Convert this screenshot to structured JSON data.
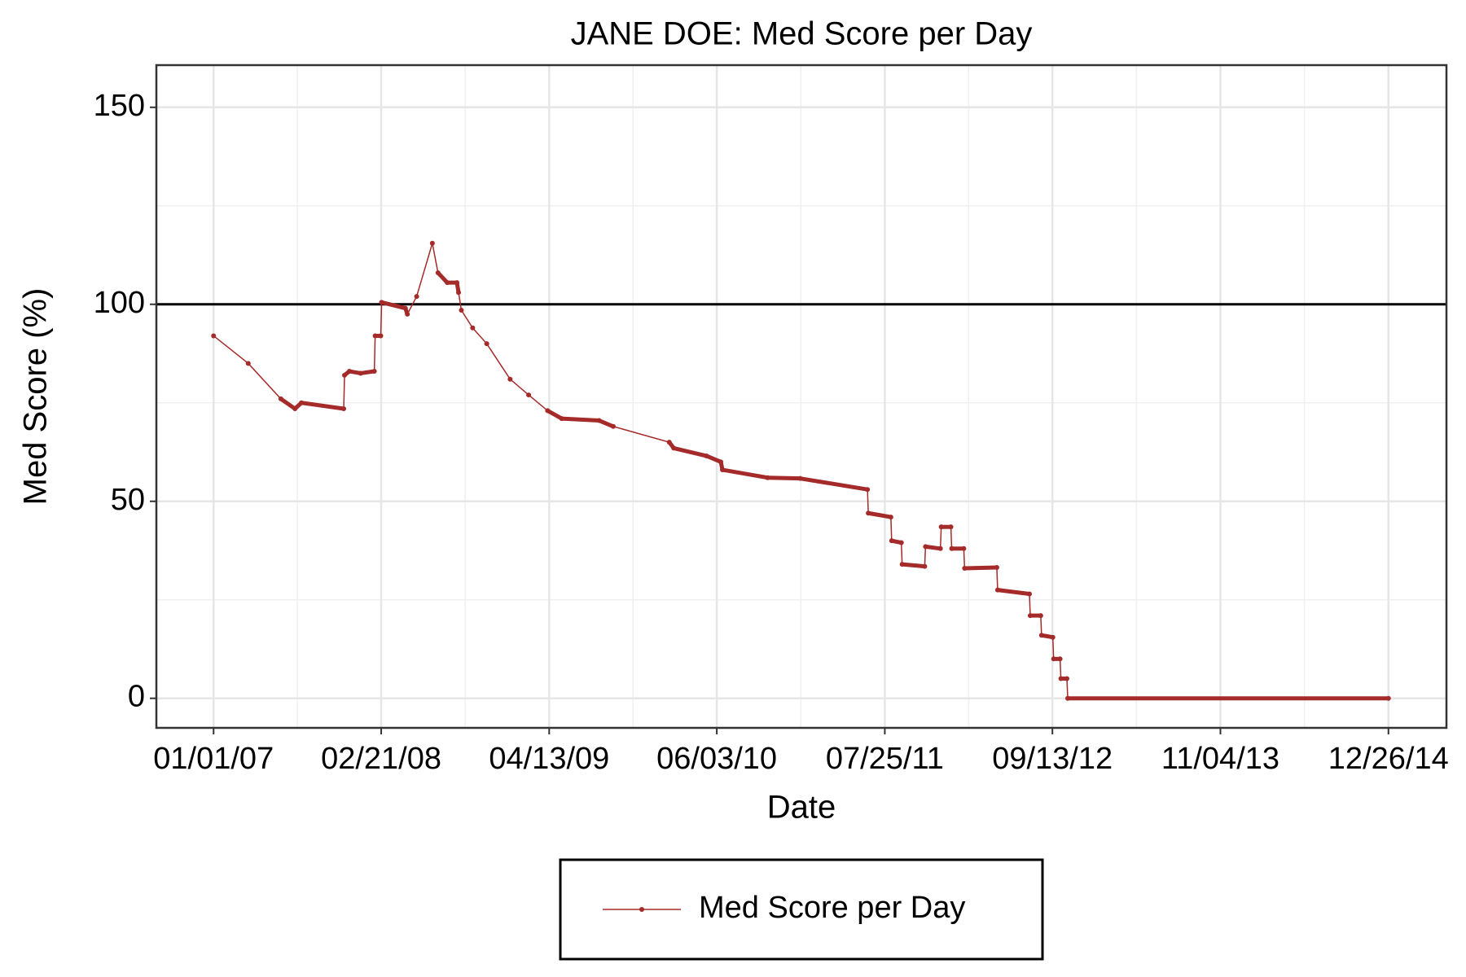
{
  "chart_data": {
    "type": "line",
    "title": "JANE DOE: Med Score per Day",
    "x_label": "Date",
    "y_label": "Med Score (%)",
    "x": [
      "2007-01-01",
      "2007-03-28",
      "2007-06-17",
      "2007-07-22",
      "2007-08-07",
      "2007-11-20",
      "2007-11-22",
      "2007-12-04",
      "2008-01-01",
      "2008-02-04",
      "2008-02-06",
      "2008-02-20",
      "2008-02-22",
      "2008-04-21",
      "2008-04-26",
      "2008-05-19",
      "2008-06-27",
      "2008-07-11",
      "2008-08-03",
      "2008-08-27",
      "2008-08-31",
      "2008-09-07",
      "2008-10-05",
      "2008-11-09",
      "2009-01-06",
      "2009-02-21",
      "2009-04-09",
      "2009-05-14",
      "2009-08-15",
      "2009-09-19",
      "2010-02-05",
      "2010-02-16",
      "2010-05-09",
      "2010-06-13",
      "2010-06-17",
      "2010-10-07",
      "2010-12-27",
      "2011-06-12",
      "2011-06-14",
      "2011-08-09",
      "2011-08-11",
      "2011-09-04",
      "2011-09-06",
      "2011-11-01",
      "2011-11-03",
      "2011-12-10",
      "2011-12-12",
      "2012-01-05",
      "2012-01-07",
      "2012-02-06",
      "2012-02-08",
      "2012-04-28",
      "2012-04-30",
      "2012-07-18",
      "2012-07-20",
      "2012-08-15",
      "2012-08-17",
      "2012-09-14",
      "2012-09-16",
      "2012-10-02",
      "2012-10-04",
      "2012-10-19",
      "2012-10-21",
      "2014-12-26"
    ],
    "series": [
      {
        "name": "Med Score per Day",
        "color": "#a52a2a",
        "values": [
          92,
          85,
          76,
          73.5,
          75,
          73.5,
          82,
          83,
          82.5,
          83,
          92,
          92,
          100.5,
          99,
          97.5,
          102,
          115.5,
          108,
          105.5,
          105.5,
          103,
          98.5,
          94,
          90,
          81,
          77,
          73,
          71,
          70.5,
          69,
          65,
          63.5,
          61.5,
          60,
          58,
          56,
          55.8,
          53,
          47,
          46,
          40,
          39.5,
          34,
          33.5,
          38.5,
          38,
          43.5,
          43.5,
          38,
          38,
          33,
          33.2,
          27.5,
          26.5,
          21,
          21,
          16,
          15.5,
          10,
          10,
          5,
          5,
          0,
          0
        ]
      }
    ],
    "hline": 100,
    "xlim": [
      "2006-08-12",
      "2015-05-19"
    ],
    "xticks": [
      {
        "value": "2007-01-01",
        "label": "01/01/07"
      },
      {
        "value": "2008-02-21",
        "label": "02/21/08"
      },
      {
        "value": "2009-04-13",
        "label": "04/13/09"
      },
      {
        "value": "2010-06-03",
        "label": "06/03/10"
      },
      {
        "value": "2011-07-25",
        "label": "07/25/11"
      },
      {
        "value": "2012-09-13",
        "label": "09/13/12"
      },
      {
        "value": "2013-11-04",
        "label": "11/04/13"
      },
      {
        "value": "2014-12-26",
        "label": "12/26/14"
      }
    ],
    "ylim": [
      -7.5,
      160.7
    ],
    "yticks": [
      0,
      50,
      100,
      150
    ],
    "grid": true,
    "legend": "bottom"
  }
}
